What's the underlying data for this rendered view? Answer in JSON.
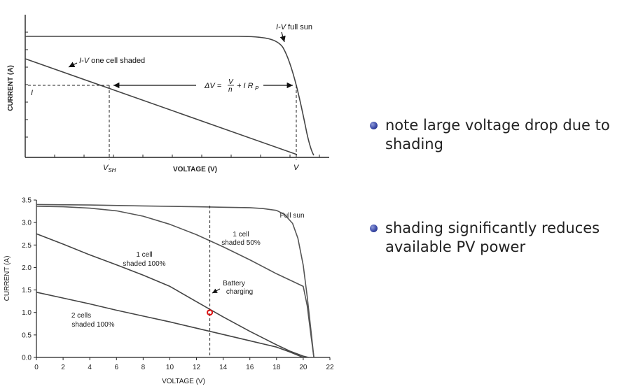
{
  "top_chart": {
    "ylabel": "CURRENT (A)",
    "xlabel": "VOLTAGE (V)",
    "label_full_sun": "I-V full sun",
    "label_full_sun_italic": "I-V",
    "label_full_sun_rest": " full sun",
    "label_shaded": "I-V one cell shaded",
    "label_shaded_italic": "I-V",
    "label_shaded_rest": " one cell shaded",
    "current_marker": "I",
    "vsh_main": "V",
    "vsh_sub": "SH",
    "v_marker": "V",
    "equation": "ΔV = V/n + I Rp",
    "eq_lhs": "ΔV =",
    "eq_num": "V",
    "eq_den": "n",
    "eq_rhs": "+ I R",
    "eq_sub": "P"
  },
  "chart_data": {
    "type": "line",
    "title": "",
    "xlabel": "VOLTAGE (V)",
    "ylabel": "CURRENT (A)",
    "xlim": [
      0,
      22
    ],
    "ylim": [
      0,
      3.5
    ],
    "xticks": [
      0,
      2,
      4,
      6,
      8,
      10,
      12,
      14,
      16,
      18,
      20,
      22
    ],
    "yticks": [
      0.0,
      0.5,
      1.0,
      1.5,
      2.0,
      2.5,
      3.0,
      3.5
    ],
    "grid": false,
    "series": [
      {
        "name": "Full sun",
        "color": "#555555",
        "x": [
          0,
          4,
          8,
          12,
          14,
          16,
          17,
          18,
          18.6,
          19.2,
          19.6,
          20.0,
          20.3,
          20.6,
          20.8
        ],
        "y": [
          3.4,
          3.39,
          3.37,
          3.35,
          3.34,
          3.33,
          3.31,
          3.27,
          3.18,
          2.98,
          2.65,
          2.05,
          1.35,
          0.55,
          0.0
        ]
      },
      {
        "name": "1 cell shaded 50%",
        "color": "#555555",
        "x": [
          0,
          2,
          4,
          6,
          8,
          10,
          12,
          14,
          16,
          18,
          19,
          20.0,
          20.3,
          20.6,
          20.8
        ],
        "y": [
          3.36,
          3.35,
          3.32,
          3.26,
          3.14,
          2.96,
          2.73,
          2.46,
          2.17,
          1.86,
          1.72,
          1.58,
          1.15,
          0.45,
          0.0
        ]
      },
      {
        "name": "1 cell shaded 100%",
        "color": "#444444",
        "x": [
          0,
          2,
          4,
          6,
          8,
          10,
          12,
          14,
          16,
          18,
          19,
          20.0,
          20.4
        ],
        "y": [
          2.75,
          2.52,
          2.28,
          2.06,
          1.83,
          1.58,
          1.24,
          0.9,
          0.58,
          0.28,
          0.14,
          0.03,
          0.0
        ]
      },
      {
        "name": "2 cells shaded 100%",
        "color": "#444444",
        "x": [
          0,
          2,
          4,
          6,
          8,
          10,
          12,
          14,
          16,
          18,
          19,
          20.0
        ],
        "y": [
          1.45,
          1.32,
          1.19,
          1.05,
          0.92,
          0.79,
          0.65,
          0.51,
          0.37,
          0.23,
          0.12,
          0.0
        ]
      }
    ],
    "annotations": [
      {
        "text": "Full sun",
        "x": 19.5,
        "y": 3.07
      },
      {
        "text": "1 cell shaded 50%",
        "x": 16.4,
        "y": 2.6
      },
      {
        "text": "1 cell shaded 100%",
        "x": 8.2,
        "y": 2.2
      },
      {
        "text": "2 cells shaded 100%",
        "x": 3.5,
        "y": 0.82
      },
      {
        "text": "Battery charging",
        "x": 15.3,
        "y": 1.47
      }
    ],
    "battery_voltage": 13,
    "operating_point": {
      "x": 13,
      "y": 1.0,
      "color": "#dd1111"
    }
  },
  "bottom_chart": {
    "label_full_sun": "Full sun",
    "label_half_1": "1 cell",
    "label_half_2": "shaded 50%",
    "label_one_1": "1 cell",
    "label_one_2": "shaded 100%",
    "label_two_1": "2 cells",
    "label_two_2": "shaded 100%",
    "label_batt_1": "Battery",
    "label_batt_2": "charging",
    "ylabel": "CURRENT (A)",
    "xlabel": "VOLTAGE (V)"
  },
  "bullets": [
    {
      "text": "note large voltage drop due to shading"
    },
    {
      "text": "shading significantly reduces available PV power"
    }
  ],
  "colors": {
    "bullet": "#3b4aa8",
    "operating_point": "#dd1111",
    "curves": "#444444"
  }
}
